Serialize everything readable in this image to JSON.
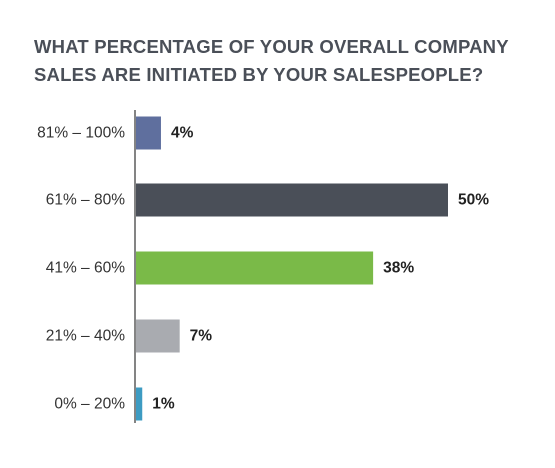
{
  "title_lines": [
    "WHAT PERCENTAGE OF YOUR OVERALL COMPANY",
    "SALES ARE INITIATED BY YOUR SALESPEOPLE?"
  ],
  "chart_data": {
    "type": "bar",
    "orientation": "horizontal",
    "title": "WHAT PERCENTAGE OF YOUR OVERALL COMPANY SALES ARE INITIATED BY YOUR SALESPEOPLE?",
    "categories": [
      "81% – 100%",
      "61% – 80%",
      "41% – 60%",
      "21% – 40%",
      "0% – 20%"
    ],
    "values": [
      4,
      50,
      38,
      7,
      1
    ],
    "value_labels": [
      "4%",
      "50%",
      "38%",
      "7%",
      "1%"
    ],
    "colors": [
      "#5f6f9e",
      "#4a4f58",
      "#7aba48",
      "#a9abb0",
      "#3d9bc2"
    ],
    "xlim": [
      0,
      50
    ],
    "grid": false,
    "legend": "none"
  }
}
